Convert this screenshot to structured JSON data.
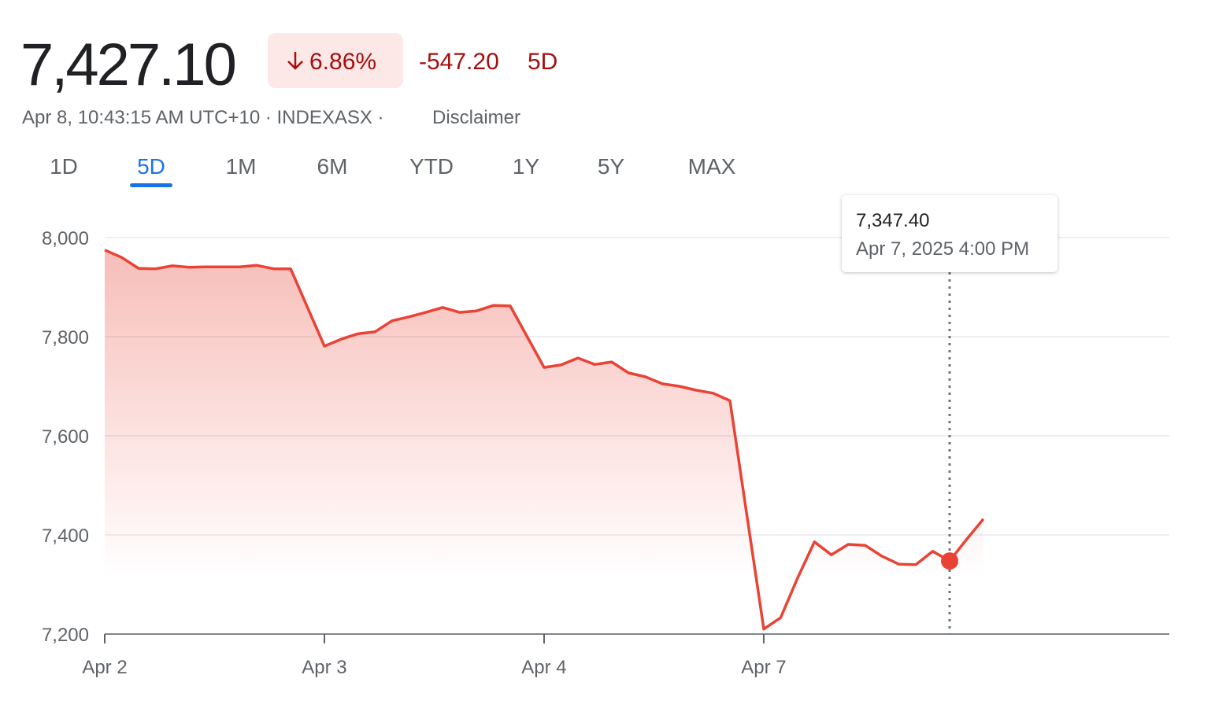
{
  "header": {
    "price": "7,427.10",
    "change_percent": "6.86%",
    "change_value": "-547.20",
    "change_period": "5D",
    "info": "Apr 8, 10:43:15 AM UTC+10 · INDEXASX ·",
    "disclaimer": "Disclaimer"
  },
  "tabs": {
    "items": [
      "1D",
      "5D",
      "1M",
      "6M",
      "YTD",
      "1Y",
      "5Y",
      "MAX"
    ],
    "selected_index": 1
  },
  "tooltip": {
    "value": "7,347.40",
    "date": "Apr 7, 2025 4:00 PM",
    "index": 50
  },
  "chart_data": {
    "type": "line",
    "color": "#ea4335",
    "categories": [
      "Apr 2",
      null,
      null,
      null,
      null,
      null,
      null,
      null,
      null,
      null,
      null,
      null,
      null,
      "Apr 3",
      null,
      null,
      null,
      null,
      null,
      null,
      null,
      null,
      null,
      null,
      null,
      null,
      "Apr 4",
      null,
      null,
      null,
      null,
      null,
      null,
      null,
      null,
      null,
      null,
      null,
      null,
      "Apr 7",
      null,
      null,
      null,
      null,
      null,
      null,
      null,
      null,
      null,
      null,
      null,
      null,
      null,
      null,
      null,
      null,
      null,
      null,
      null,
      null,
      null,
      null,
      null,
      null
    ],
    "values": [
      7975,
      7960,
      7938,
      7937,
      7943,
      7940,
      7941,
      7941,
      7941,
      7944,
      7937,
      7937,
      7859,
      7781,
      7795,
      7806,
      7810,
      7832,
      7840,
      7849,
      7859,
      7849,
      7852,
      7863,
      7862,
      7800,
      7738,
      7743,
      7757,
      7744,
      7749,
      7727,
      7719,
      7705,
      7700,
      7692,
      7686,
      7671,
      7440,
      7210,
      7233,
      7313,
      7386,
      7360,
      7381,
      7379,
      7357,
      7341,
      7340,
      7367,
      7347.4,
      7391,
      7432,
      null,
      null,
      null,
      null,
      null,
      null,
      null,
      null,
      null,
      null,
      null
    ],
    "ylim": [
      7200,
      8000
    ],
    "yticks": [
      {
        "value": 7200,
        "label": "7,200"
      },
      {
        "value": 7400,
        "label": "7,400"
      },
      {
        "value": 7600,
        "label": "7,600"
      },
      {
        "value": 7800,
        "label": "7,800"
      },
      {
        "value": 8000,
        "label": "8,000"
      }
    ],
    "grid": true
  }
}
